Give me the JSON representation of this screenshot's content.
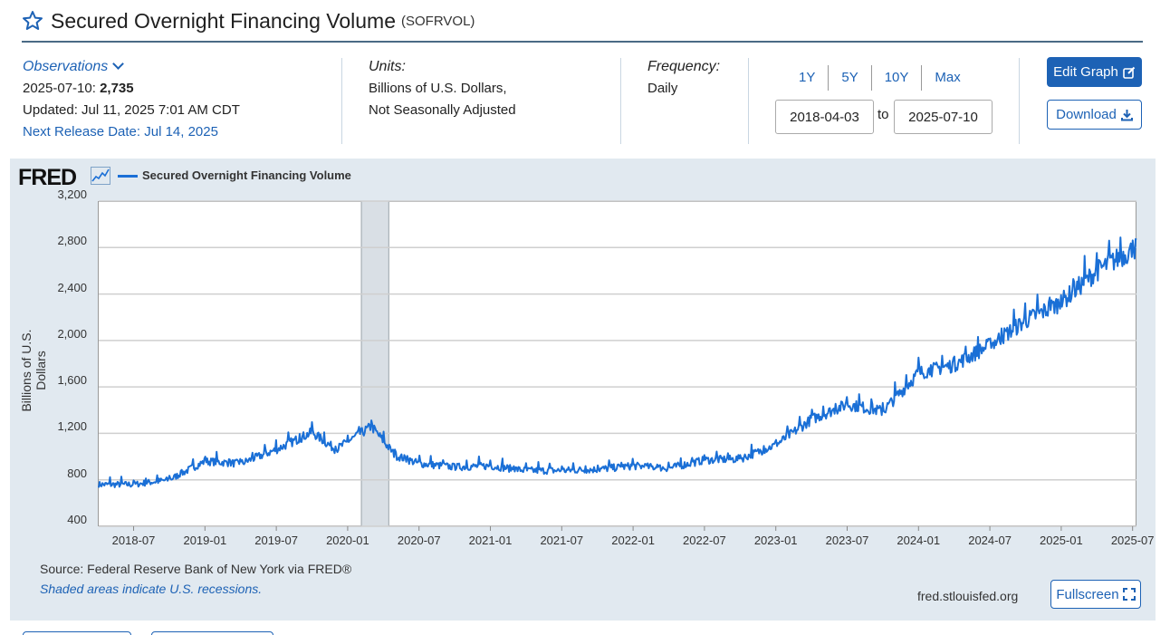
{
  "header": {
    "title": "Secured Overnight Financing Volume",
    "series_code": "(SOFRVOL)"
  },
  "observations": {
    "label": "Observations",
    "latest_date": "2025-07-10:",
    "latest_value": "2,735",
    "updated": "Updated: Jul 11, 2025 7:01 AM CDT",
    "next_release": "Next Release Date: Jul 14, 2025"
  },
  "units": {
    "label": "Units:",
    "line1": "Billions of U.S. Dollars,",
    "line2": "Not Seasonally Adjusted"
  },
  "frequency": {
    "label": "Frequency:",
    "value": "Daily"
  },
  "range_buttons": [
    "1Y",
    "5Y",
    "10Y",
    "Max"
  ],
  "date_range": {
    "start": "2018-04-03",
    "to_label": "to",
    "end": "2025-07-10"
  },
  "actions": {
    "edit_graph": "Edit Graph",
    "download": "Download",
    "fullscreen": "Fullscreen"
  },
  "graph": {
    "logo": "FRED",
    "source": "Source: Federal Reserve Bank of New York via FRED®",
    "shaded_note": "Shaded areas indicate U.S. recessions.",
    "site": "fred.stlouisfed.org"
  },
  "colors": {
    "accent": "#1d62b5",
    "series": "#1a6fd6",
    "panel": "#e1e9f0",
    "recession": "#d9dfe5"
  },
  "chart_data": {
    "type": "line",
    "title": "",
    "xlabel": "",
    "ylabel": "Billions of U.S. Dollars",
    "ylim": [
      400,
      3200
    ],
    "yticks": [
      "3,200",
      "2,800",
      "2,400",
      "2,000",
      "1,600",
      "1,200",
      "800",
      "400"
    ],
    "xticks": [
      "2018-07",
      "2019-01",
      "2019-07",
      "2020-01",
      "2020-07",
      "2021-01",
      "2021-07",
      "2022-01",
      "2022-07",
      "2023-01",
      "2023-07",
      "2024-01",
      "2024-07",
      "2025-01",
      "2025-07"
    ],
    "grid": true,
    "legend_position": "top-left",
    "recessions": [
      [
        "2020-02",
        "2020-04"
      ]
    ],
    "series": [
      {
        "name": "Secured Overnight Financing Volume",
        "x": [
          "2018-04",
          "2018-07",
          "2018-10",
          "2019-01",
          "2019-04",
          "2019-07",
          "2019-10",
          "2019-12",
          "2020-03",
          "2020-05",
          "2020-07",
          "2020-10",
          "2021-01",
          "2021-04",
          "2021-07",
          "2021-10",
          "2022-01",
          "2022-04",
          "2022-07",
          "2022-10",
          "2023-01",
          "2023-04",
          "2023-07",
          "2023-10",
          "2024-01",
          "2024-04",
          "2024-07",
          "2024-10",
          "2025-01",
          "2025-04",
          "2025-07"
        ],
        "values": [
          760,
          760,
          800,
          960,
          940,
          1060,
          1210,
          1060,
          1260,
          1010,
          940,
          910,
          920,
          880,
          880,
          890,
          920,
          900,
          970,
          980,
          1100,
          1320,
          1450,
          1390,
          1720,
          1790,
          1960,
          2170,
          2330,
          2600,
          2800
        ]
      }
    ]
  }
}
